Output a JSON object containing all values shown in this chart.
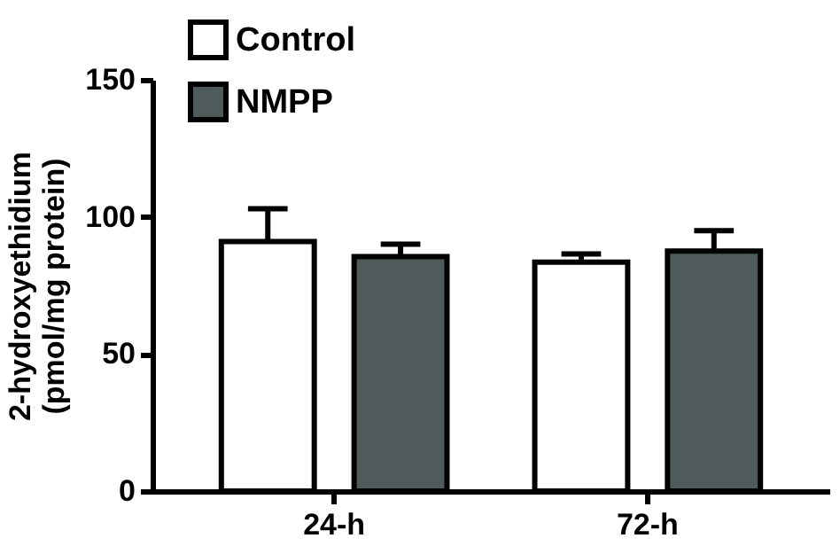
{
  "chart_data": {
    "type": "bar",
    "ylabel": "2-hydroxyethidium (pmol/mg protein)",
    "categories": [
      "24-h",
      "72-h"
    ],
    "series": [
      {
        "name": "Control",
        "color": "#ffffff",
        "values": [
          91,
          83.5
        ],
        "errors": [
          [
            91,
            103
          ],
          [
            83.5,
            86.5
          ]
        ]
      },
      {
        "name": "NMPP",
        "color": "#4f5b5a",
        "values": [
          85.5,
          87.5
        ],
        "errors": [
          [
            85.5,
            90
          ],
          [
            87.5,
            95
          ]
        ]
      }
    ],
    "ylim": [
      0,
      150
    ],
    "yticks": [
      0,
      50,
      100,
      150
    ],
    "grid": false,
    "legend": "top left"
  }
}
